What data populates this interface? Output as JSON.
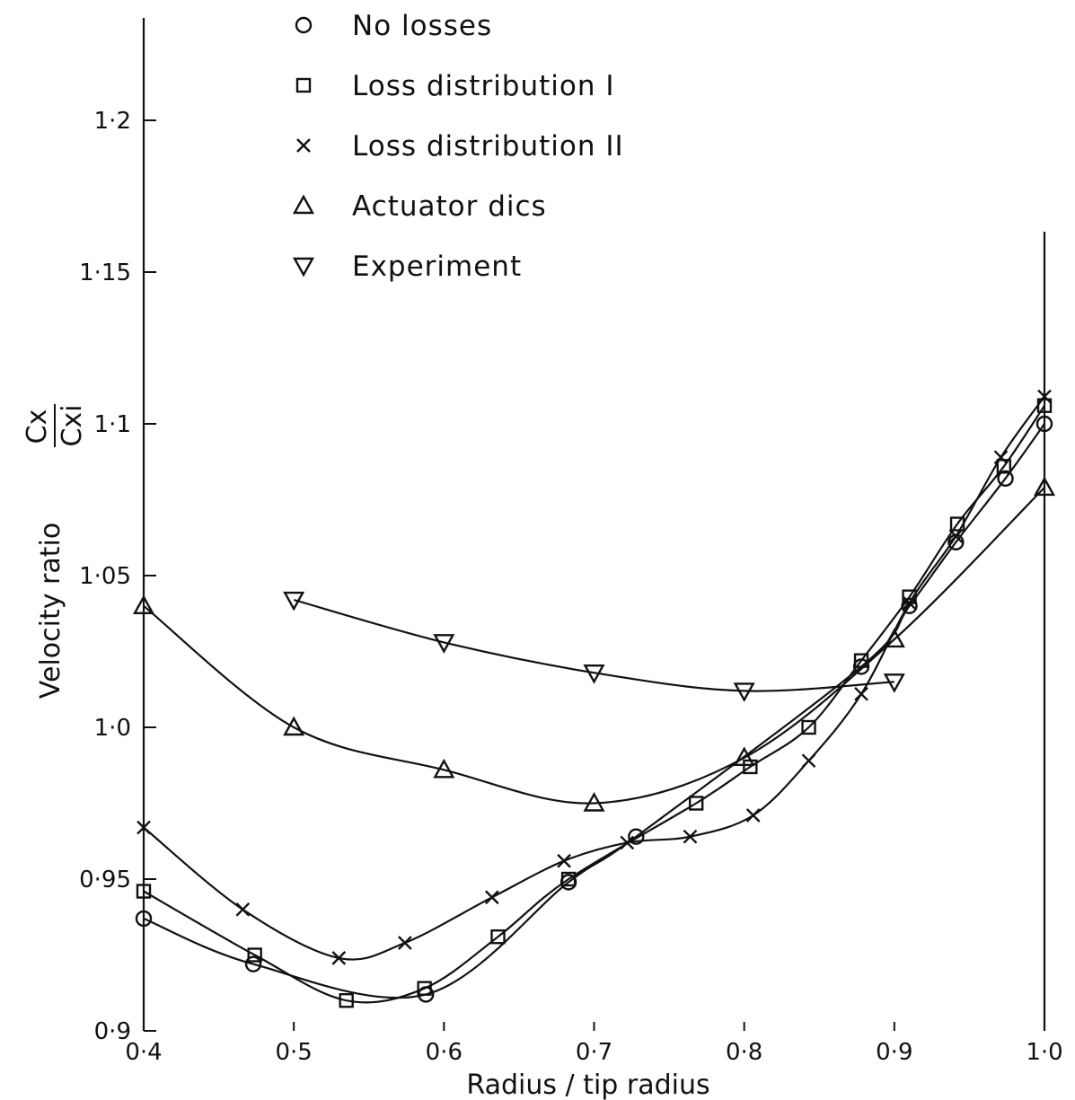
{
  "chart_data": {
    "type": "line",
    "xlabel": "Radius / tip radius",
    "ylabel_prefix": "Velocity ratio",
    "ylabel_num": "Cx",
    "ylabel_den": "Cxi",
    "xlim": [
      0.4,
      1.0
    ],
    "ylim": [
      0.9,
      1.2
    ],
    "x_ticks": [
      {
        "v": 0.4,
        "label": "0·4"
      },
      {
        "v": 0.5,
        "label": "0·5"
      },
      {
        "v": 0.6,
        "label": "0·6"
      },
      {
        "v": 0.7,
        "label": "0·7"
      },
      {
        "v": 0.8,
        "label": "0·8"
      },
      {
        "v": 0.9,
        "label": "0·9"
      },
      {
        "v": 1.0,
        "label": "1·0"
      }
    ],
    "y_ticks": [
      {
        "v": 0.9,
        "label": "0·9"
      },
      {
        "v": 0.95,
        "label": "0·95"
      },
      {
        "v": 1.0,
        "label": "1·0"
      },
      {
        "v": 1.05,
        "label": "1·05"
      },
      {
        "v": 1.1,
        "label": "1·1"
      },
      {
        "v": 1.15,
        "label": "1·15"
      },
      {
        "v": 1.2,
        "label": "1·2"
      }
    ],
    "grid": false,
    "legend_position": "top",
    "series": [
      {
        "name": "No losses",
        "marker": "circle",
        "points": [
          [
            0.4,
            0.937
          ],
          [
            0.473,
            0.922
          ],
          [
            0.588,
            0.912
          ],
          [
            0.683,
            0.949
          ],
          [
            0.728,
            0.964
          ],
          [
            0.878,
            1.02
          ],
          [
            0.91,
            1.04
          ],
          [
            0.941,
            1.061
          ],
          [
            0.974,
            1.082
          ],
          [
            1.0,
            1.1
          ]
        ]
      },
      {
        "name": "Loss distribution I",
        "marker": "square",
        "points": [
          [
            0.4,
            0.946
          ],
          [
            0.474,
            0.925
          ],
          [
            0.535,
            0.91
          ],
          [
            0.587,
            0.914
          ],
          [
            0.636,
            0.931
          ],
          [
            0.683,
            0.95
          ],
          [
            0.768,
            0.975
          ],
          [
            0.804,
            0.987
          ],
          [
            0.843,
            1.0
          ],
          [
            0.878,
            1.022
          ],
          [
            0.91,
            1.043
          ],
          [
            0.942,
            1.067
          ],
          [
            0.973,
            1.086
          ],
          [
            1.0,
            1.106
          ]
        ]
      },
      {
        "name": "Loss distribution II",
        "marker": "cross",
        "points": [
          [
            0.4,
            0.967
          ],
          [
            0.466,
            0.94
          ],
          [
            0.53,
            0.924
          ],
          [
            0.574,
            0.929
          ],
          [
            0.632,
            0.944
          ],
          [
            0.68,
            0.956
          ],
          [
            0.722,
            0.962
          ],
          [
            0.764,
            0.964
          ],
          [
            0.806,
            0.971
          ],
          [
            0.843,
            0.989
          ],
          [
            0.878,
            1.011
          ],
          [
            0.91,
            1.041
          ],
          [
            0.941,
            1.063
          ],
          [
            0.971,
            1.089
          ],
          [
            1.0,
            1.109
          ]
        ]
      },
      {
        "name": "Actuator dics",
        "marker": "triangle-up",
        "points": [
          [
            0.4,
            1.04
          ],
          [
            0.5,
            1.0
          ],
          [
            0.6,
            0.986
          ],
          [
            0.7,
            0.975
          ],
          [
            0.8,
            0.99
          ],
          [
            0.9,
            1.029
          ],
          [
            1.0,
            1.079
          ]
        ]
      },
      {
        "name": "Experiment",
        "marker": "triangle-down",
        "points": [
          [
            0.5,
            1.042
          ],
          [
            0.6,
            1.028
          ],
          [
            0.7,
            1.018
          ],
          [
            0.8,
            1.012
          ],
          [
            0.9,
            1.015
          ]
        ]
      }
    ]
  }
}
